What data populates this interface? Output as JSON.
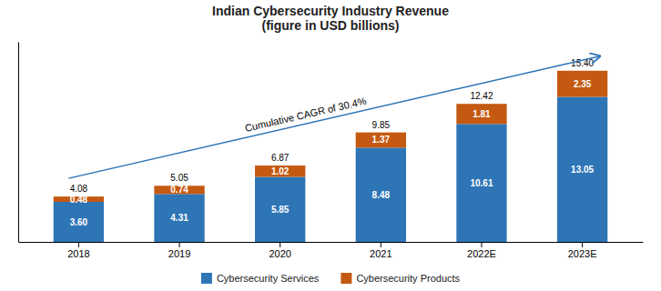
{
  "chart_data": {
    "type": "bar",
    "stacked": true,
    "title": "Indian Cybersecurity Industry Revenue\n(figure in USD billions)",
    "categories": [
      "2018",
      "2019",
      "2020",
      "2021",
      "2022E",
      "2023E"
    ],
    "series": [
      {
        "name": "Cybersecurity Services",
        "color": "#2E75B6",
        "values": [
          3.6,
          4.31,
          5.85,
          8.48,
          10.61,
          13.05
        ],
        "value_labels": [
          "3.60",
          "4.31",
          "5.85",
          "8.48",
          "10.61",
          "13.05"
        ]
      },
      {
        "name": "Cybersecurity Products",
        "color": "#C45911",
        "values": [
          0.48,
          0.74,
          1.02,
          1.37,
          1.81,
          2.35
        ],
        "value_labels": [
          "0.48",
          "0.74",
          "1.02",
          "1.37",
          "1.81",
          "2.35"
        ]
      }
    ],
    "totals": [
      4.08,
      5.05,
      6.87,
      9.85,
      12.42,
      15.4
    ],
    "total_labels": [
      "4.08",
      "5.05",
      "6.87",
      "9.85",
      "12.42",
      "15.40"
    ],
    "ylim": [
      0,
      18
    ],
    "tick_labels": "x",
    "grid": false,
    "legend": "bottom",
    "data_labels": true,
    "annotations": [
      {
        "text": "Cumulative CAGR of 30.4%",
        "color": "#2E75B6"
      }
    ]
  }
}
